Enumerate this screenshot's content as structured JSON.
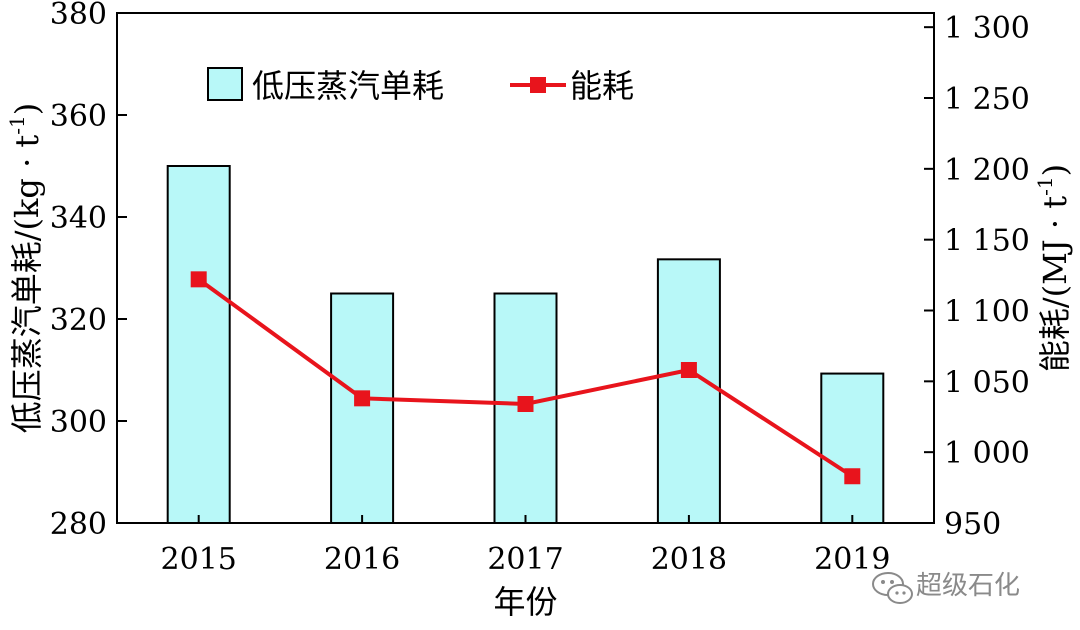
{
  "chart_data": {
    "type": "bar",
    "categories": [
      "2015",
      "2016",
      "2017",
      "2018",
      "2019"
    ],
    "series": [
      {
        "name": "低压蒸汽单耗",
        "type": "bar",
        "axis": "left",
        "values": [
          350.0,
          325.0,
          325.0,
          331.7,
          309.3
        ],
        "color": "#b8f8f8"
      },
      {
        "name": "能耗",
        "type": "line",
        "axis": "right",
        "values": [
          1122,
          1038,
          1034,
          1058,
          983
        ],
        "color": "#e8141c"
      }
    ],
    "xlabel": "年份",
    "ylabel": "低压蒸汽单耗/(kg · t",
    "ylabel_sup": "-1",
    "ylabel_close": ")",
    "ylabel2": "能耗/(MJ · t",
    "ylabel2_sup": "-1",
    "ylabel2_close": ")",
    "ylim": [
      280,
      380
    ],
    "y2lim": [
      950,
      1310
    ],
    "yticks": [
      {
        "value": 280,
        "label": "280"
      },
      {
        "value": 300,
        "label": "300"
      },
      {
        "value": 320,
        "label": "320"
      },
      {
        "value": 340,
        "label": "340"
      },
      {
        "value": 360,
        "label": "360"
      },
      {
        "value": 380,
        "label": "380"
      }
    ],
    "y2ticks": [
      {
        "value": 950,
        "label": "950"
      },
      {
        "value": 1000,
        "label": "1 000"
      },
      {
        "value": 1050,
        "label": "1 050"
      },
      {
        "value": 1100,
        "label": "1 100"
      },
      {
        "value": 1150,
        "label": "1 150"
      },
      {
        "value": 1200,
        "label": "1 200"
      },
      {
        "value": 1250,
        "label": "1 250"
      },
      {
        "value": 1300,
        "label": "1 300"
      }
    ],
    "grid": false,
    "legend_position": "top-left"
  },
  "watermark": {
    "text": "超级石化",
    "icon": "wechat-icon"
  }
}
